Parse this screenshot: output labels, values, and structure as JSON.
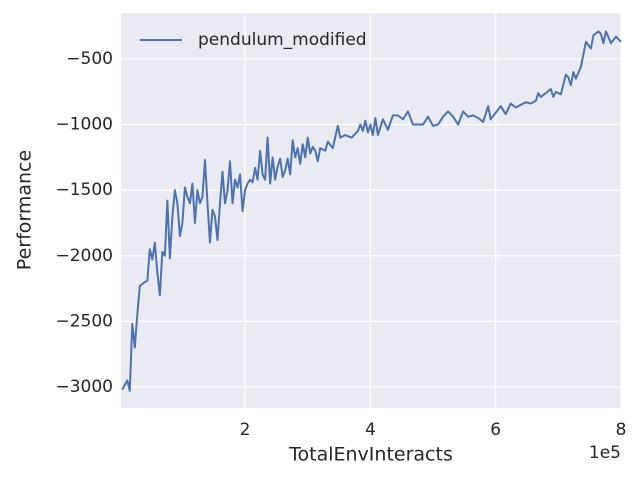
{
  "chart_data": {
    "type": "line",
    "xlabel": "TotalEnvInteracts",
    "ylabel": "Performance",
    "x_offset_label": "1e5",
    "x": [
      4000,
      12000,
      16000,
      20000,
      24000,
      28000,
      32000,
      40000,
      44000,
      48000,
      52000,
      56000,
      60000,
      64000,
      68000,
      72000,
      76000,
      80000,
      84000,
      88000,
      92000,
      96000,
      100000,
      104000,
      108000,
      112000,
      116000,
      120000,
      124000,
      128000,
      132000,
      136000,
      140000,
      144000,
      148000,
      152000,
      156000,
      160000,
      164000,
      168000,
      172000,
      176000,
      180000,
      184000,
      188000,
      192000,
      196000,
      200000,
      204000,
      208000,
      212000,
      216000,
      220000,
      224000,
      228000,
      232000,
      236000,
      240000,
      244000,
      248000,
      252000,
      256000,
      260000,
      264000,
      268000,
      272000,
      276000,
      280000,
      284000,
      288000,
      292000,
      296000,
      300000,
      304000,
      308000,
      312000,
      316000,
      320000,
      328000,
      332000,
      340000,
      348000,
      352000,
      360000,
      370000,
      380000,
      384000,
      388000,
      392000,
      396000,
      400000,
      404000,
      408000,
      412000,
      420000,
      428000,
      436000,
      444000,
      452000,
      460000,
      468000,
      476000,
      484000,
      492000,
      500000,
      508000,
      516000,
      524000,
      532000,
      540000,
      548000,
      556000,
      564000,
      572000,
      580000,
      588000,
      592000,
      600000,
      608000,
      616000,
      624000,
      632000,
      640000,
      648000,
      656000,
      664000,
      668000,
      672000,
      680000,
      688000,
      692000,
      696000,
      704000,
      712000,
      716000,
      720000,
      724000,
      728000,
      736000,
      744000,
      752000,
      756000,
      764000,
      768000,
      772000,
      776000,
      784000,
      792000,
      800000
    ],
    "series": [
      {
        "name": "pendulum_modified",
        "color": "#4c72b0",
        "values": [
          -3020,
          -2950,
          -3030,
          -2520,
          -2700,
          -2450,
          -2230,
          -2200,
          -2190,
          -1950,
          -2030,
          -1900,
          -2130,
          -2300,
          -1970,
          -2000,
          -1580,
          -2020,
          -1700,
          -1500,
          -1600,
          -1850,
          -1750,
          -1480,
          -1550,
          -1600,
          -1450,
          -1750,
          -1500,
          -1600,
          -1550,
          -1270,
          -1600,
          -1900,
          -1650,
          -1700,
          -1880,
          -1600,
          -1360,
          -1600,
          -1500,
          -1280,
          -1600,
          -1420,
          -1480,
          -1380,
          -1660,
          -1500,
          -1450,
          -1420,
          -1440,
          -1330,
          -1420,
          -1200,
          -1380,
          -1420,
          -1100,
          -1450,
          -1250,
          -1420,
          -1320,
          -1260,
          -1400,
          -1350,
          -1260,
          -1380,
          -1120,
          -1250,
          -1180,
          -1300,
          -1150,
          -1250,
          -1100,
          -1220,
          -1170,
          -1200,
          -1280,
          -1180,
          -1200,
          -1130,
          -1180,
          -1010,
          -1100,
          -1080,
          -1100,
          -1050,
          -1000,
          -1050,
          -970,
          -1060,
          -1000,
          -1080,
          -950,
          -1080,
          -960,
          -1040,
          -930,
          -930,
          -960,
          -900,
          -1000,
          -1000,
          -1000,
          -940,
          -1010,
          -1000,
          -940,
          -900,
          -940,
          -1000,
          -900,
          -940,
          -930,
          -950,
          -980,
          -860,
          -960,
          -910,
          -860,
          -920,
          -840,
          -870,
          -850,
          -830,
          -840,
          -820,
          -760,
          -790,
          -760,
          -730,
          -790,
          -750,
          -770,
          -620,
          -640,
          -700,
          -600,
          -650,
          -560,
          -370,
          -420,
          -320,
          -290,
          -310,
          -380,
          -290,
          -380,
          -330,
          -370
        ]
      }
    ],
    "xlim": [
      2000,
      800000
    ],
    "ylim": [
      -3160,
      -150
    ],
    "xticks": [
      {
        "value": 200000,
        "label": "2"
      },
      {
        "value": 400000,
        "label": "4"
      },
      {
        "value": 600000,
        "label": "6"
      },
      {
        "value": 800000,
        "label": "8"
      }
    ],
    "yticks": [
      {
        "value": -3000,
        "label": "−3000"
      },
      {
        "value": -2500,
        "label": "−2500"
      },
      {
        "value": -2000,
        "label": "−2000"
      },
      {
        "value": -1500,
        "label": "−1500"
      },
      {
        "value": -1000,
        "label": "−1000"
      },
      {
        "value": -500,
        "label": "−500"
      }
    ],
    "grid": true,
    "legend": "upper left"
  }
}
